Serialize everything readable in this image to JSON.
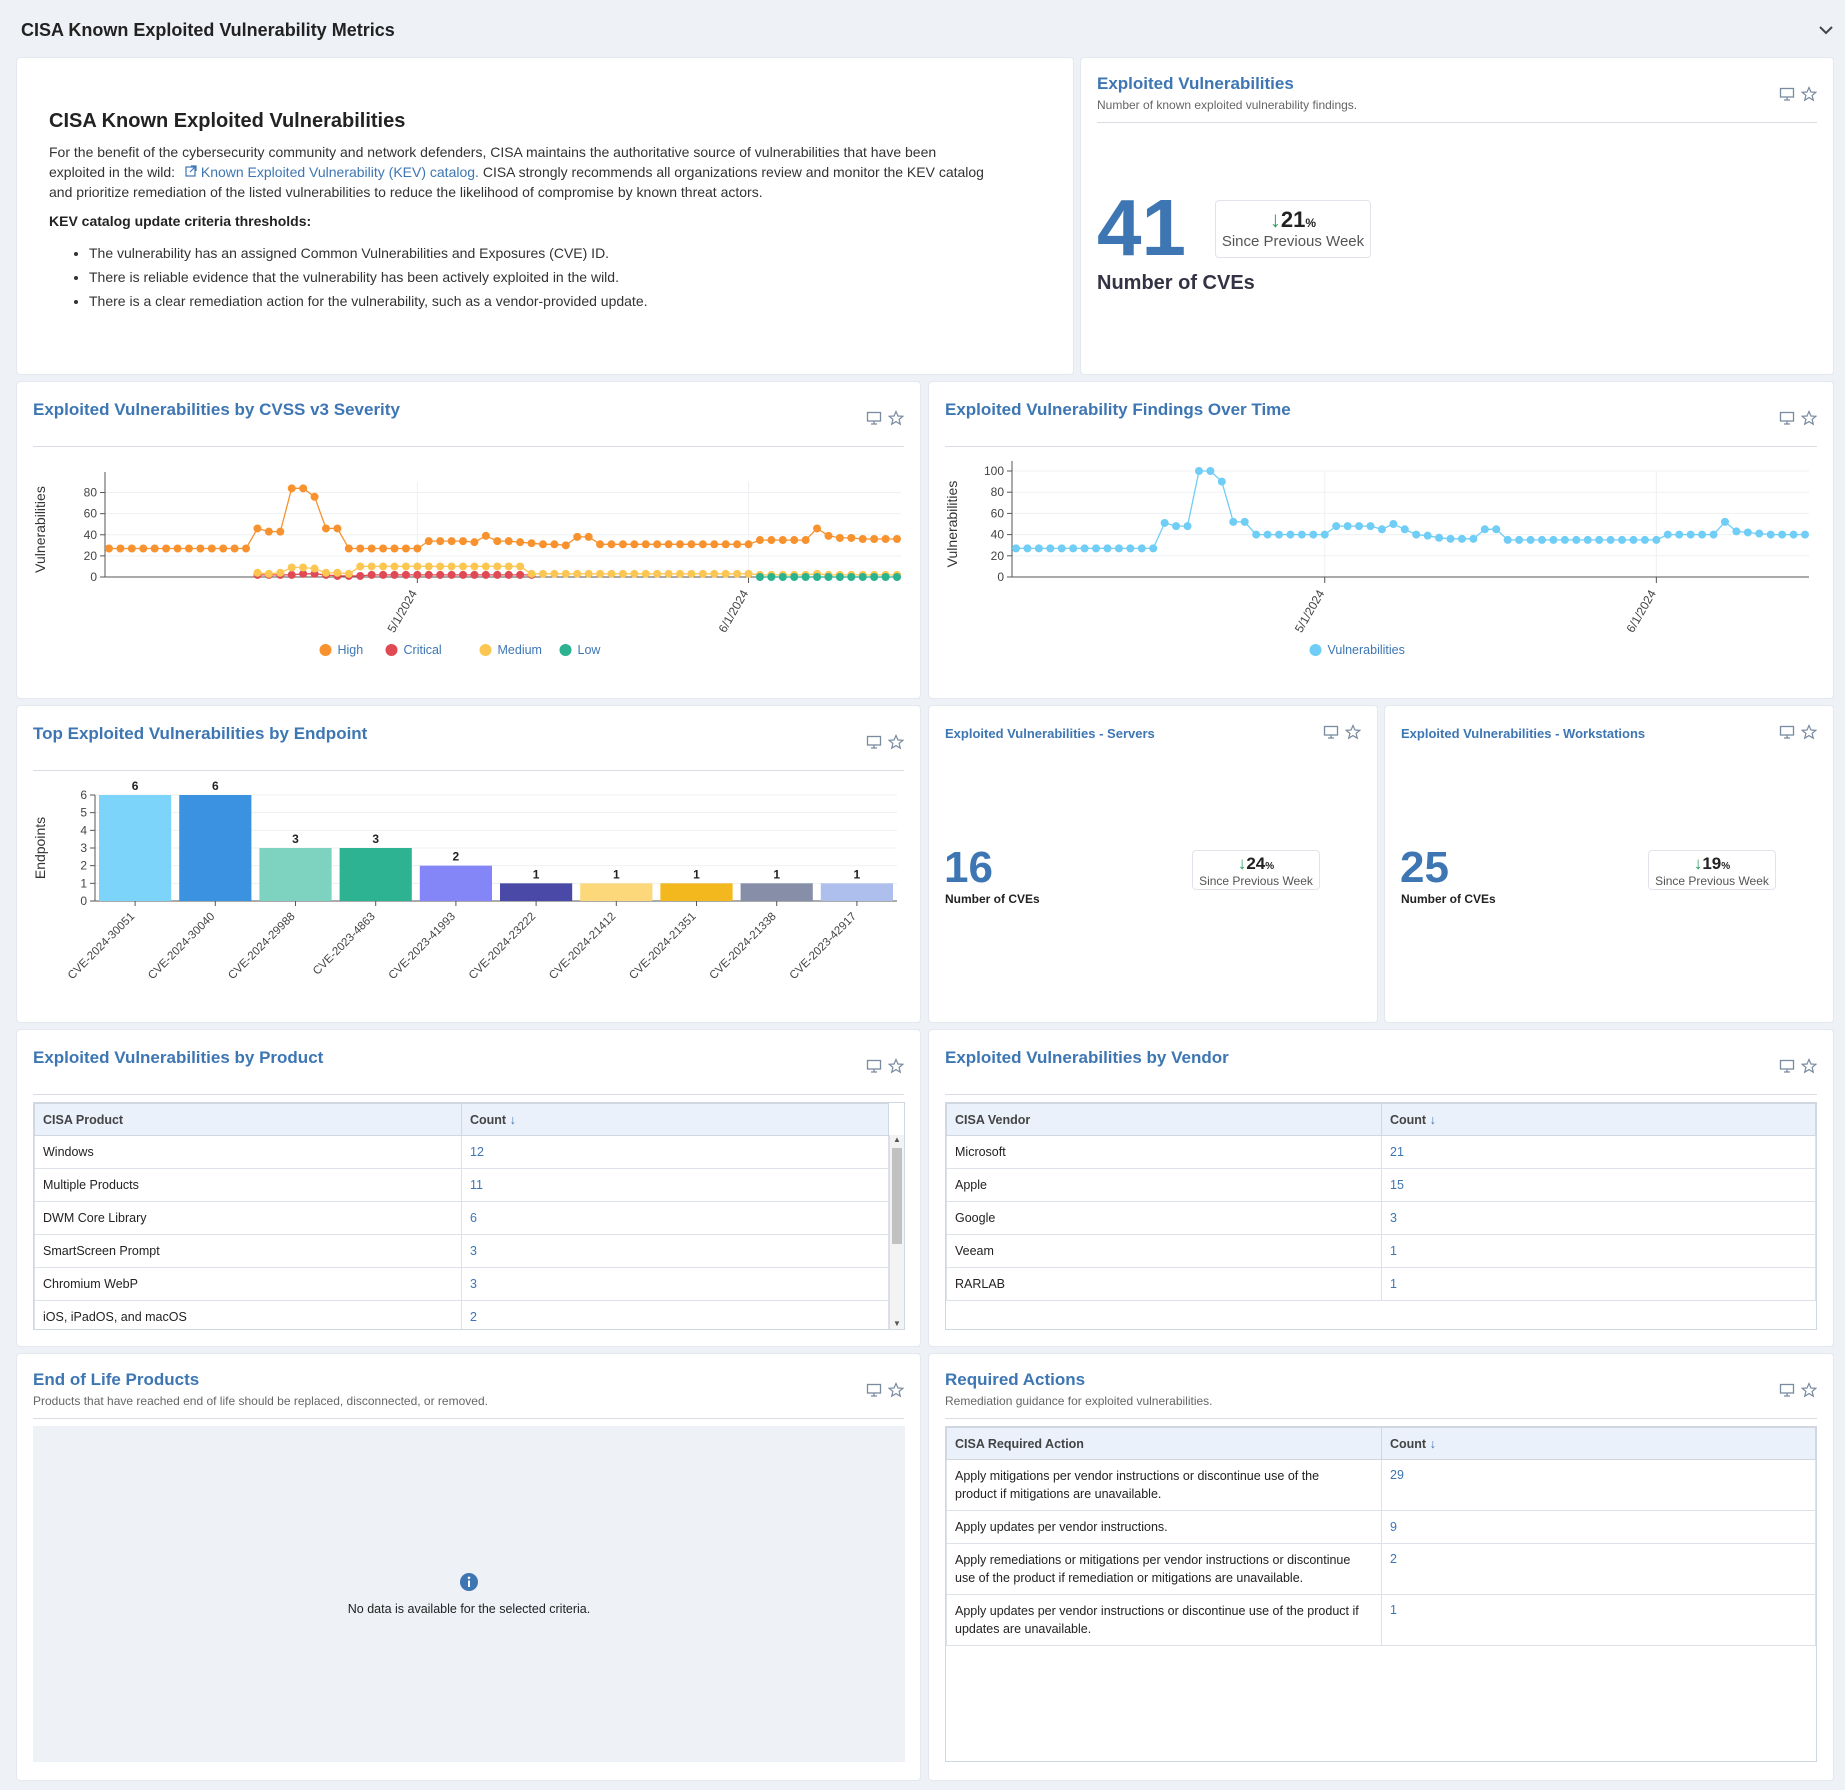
{
  "header": {
    "title": "CISA Known Exploited Vulnerability Metrics"
  },
  "intro": {
    "title": "CISA Known Exploited Vulnerabilities",
    "p1_a": "For the benefit of the cybersecurity community and network defenders, CISA maintains the authoritative source of vulnerabilities that have been",
    "p1_b": "exploited in the wild:",
    "link": "Known Exploited Vulnerability (KEV) catalog.",
    "p1_c": "CISA strongly recommends all organizations review and monitor the KEV catalog",
    "p1_d": "and prioritize remediation of the listed vulnerabilities to reduce the likelihood of compromise by known threat actors.",
    "criteria_title": "KEV catalog update criteria thresholds:",
    "bullets": [
      "The vulnerability has an assigned Common Vulnerabilities and Exposures (CVE) ID.",
      "There is reliable evidence that the vulnerability has been actively exploited in the wild.",
      "There is a clear remediation action for the vulnerability, such as a vendor-provided update."
    ]
  },
  "kpi_main": {
    "title": "Exploited Vulnerabilities",
    "subtitle": "Number of known exploited vulnerability findings.",
    "value": "41",
    "label": "Number of CVEs",
    "delta": "21",
    "delta_unit": "%",
    "delta_label": "Since Previous Week"
  },
  "kpi_servers": {
    "title": "Exploited Vulnerabilities - Servers",
    "value": "16",
    "label": "Number of CVEs",
    "delta": "24",
    "delta_unit": "%",
    "delta_label": "Since Previous Week"
  },
  "kpi_workstations": {
    "title": "Exploited Vulnerabilities - Workstations",
    "value": "25",
    "label": "Number of CVEs",
    "delta": "19",
    "delta_unit": "%",
    "delta_label": "Since Previous Week"
  },
  "severity_panel": {
    "title": "Exploited Vulnerabilities by CVSS v3 Severity"
  },
  "overtime_panel": {
    "title": "Exploited Vulnerability Findings Over Time"
  },
  "endpoint_panel": {
    "title": "Top Exploited Vulnerabilities by Endpoint"
  },
  "product_panel": {
    "title": "Exploited Vulnerabilities by Product",
    "columns": [
      "CISA Product",
      "Count"
    ],
    "rows": [
      [
        "Windows",
        "12"
      ],
      [
        "Multiple Products",
        "11"
      ],
      [
        "DWM Core Library",
        "6"
      ],
      [
        "SmartScreen Prompt",
        "3"
      ],
      [
        "Chromium WebP",
        "3"
      ],
      [
        "iOS, iPadOS, and macOS",
        "2"
      ]
    ]
  },
  "vendor_panel": {
    "title": "Exploited Vulnerabilities by Vendor",
    "columns": [
      "CISA Vendor",
      "Count"
    ],
    "rows": [
      [
        "Microsoft",
        "21"
      ],
      [
        "Apple",
        "15"
      ],
      [
        "Google",
        "3"
      ],
      [
        "Veeam",
        "1"
      ],
      [
        "RARLAB",
        "1"
      ]
    ]
  },
  "eol_panel": {
    "title": "End of Life Products",
    "subtitle": "Products that have reached end of life should be replaced, disconnected, or removed.",
    "empty": "No data is available for the selected criteria."
  },
  "actions_panel": {
    "title": "Required Actions",
    "subtitle": "Remediation guidance for exploited vulnerabilities.",
    "columns": [
      "CISA Required Action",
      "Count"
    ],
    "rows": [
      [
        "Apply mitigations per vendor instructions or discontinue use of the product if mitigations are unavailable.",
        "29"
      ],
      [
        "Apply updates per vendor instructions.",
        "9"
      ],
      [
        "Apply remediations or mitigations per vendor instructions or discontinue use of the product if remediation or mitigations are unavailable.",
        "2"
      ],
      [
        "Apply updates per vendor instructions or discontinue use of the product if updates are unavailable.",
        "1"
      ]
    ]
  },
  "colors": {
    "accent": "#3d76b3",
    "high": "#f7922f",
    "critical": "#e04a54",
    "medium": "#fcc653",
    "low": "#2bb28f",
    "vulns": "#6fcdf6"
  },
  "chart_data": [
    {
      "type": "line",
      "ylabel": "Vulnerabilities",
      "ylim": [
        0,
        90
      ],
      "yticks": [
        0,
        20,
        40,
        60,
        80
      ],
      "xticks": [
        "5/1/2024",
        "6/1/2024"
      ],
      "legend_position": "bottom",
      "grid": true,
      "series": [
        {
          "name": "High",
          "color": "#f7922f",
          "values": [
            27,
            27,
            27,
            27,
            27,
            27,
            27,
            27,
            27,
            27,
            27,
            27,
            27,
            46,
            43,
            43,
            84,
            84,
            76,
            46,
            46,
            27,
            27,
            27,
            27,
            27,
            27,
            27,
            34,
            34,
            34,
            34,
            33,
            39,
            34,
            34,
            33,
            32,
            31,
            31,
            30,
            38,
            38,
            31,
            31,
            31,
            31,
            31,
            31,
            31,
            31,
            31,
            31,
            31,
            31,
            31,
            31,
            35,
            35,
            35,
            35,
            35,
            46,
            39,
            37,
            37,
            36,
            36,
            36,
            36
          ]
        },
        {
          "name": "Critical",
          "color": "#e04a54",
          "values": [
            null,
            null,
            null,
            null,
            null,
            null,
            null,
            null,
            null,
            null,
            null,
            null,
            null,
            2,
            2,
            2,
            2,
            3,
            3,
            2,
            1,
            1,
            1,
            2,
            2,
            2,
            2,
            2,
            2,
            2,
            2,
            2,
            2,
            2,
            2,
            2,
            2,
            2,
            null,
            null,
            null,
            null,
            null,
            null,
            null,
            null,
            null,
            null,
            null,
            null,
            null,
            null,
            null,
            null,
            null,
            null,
            null,
            null,
            null,
            null,
            null,
            null,
            null,
            null,
            null,
            null,
            null,
            null,
            null,
            null
          ]
        },
        {
          "name": "Medium",
          "color": "#fcc653",
          "values": [
            null,
            null,
            null,
            null,
            null,
            null,
            null,
            null,
            null,
            null,
            null,
            null,
            null,
            4,
            3,
            4,
            9,
            9,
            8,
            4,
            4,
            3,
            10,
            10,
            10,
            10,
            10,
            10,
            10,
            10,
            10,
            10,
            10,
            10,
            10,
            10,
            10,
            3,
            3,
            3,
            3,
            3,
            3,
            3,
            3,
            3,
            3,
            3,
            3,
            3,
            3,
            3,
            3,
            3,
            3,
            3,
            3,
            2,
            2,
            2,
            2,
            2,
            3,
            2,
            2,
            2,
            2,
            2,
            2,
            2
          ]
        },
        {
          "name": "Low",
          "color": "#2bb28f",
          "values": [
            null,
            null,
            null,
            null,
            null,
            null,
            null,
            null,
            null,
            null,
            null,
            null,
            null,
            null,
            null,
            null,
            null,
            null,
            null,
            null,
            null,
            null,
            null,
            null,
            null,
            null,
            null,
            null,
            null,
            null,
            null,
            null,
            null,
            null,
            null,
            null,
            null,
            null,
            null,
            null,
            null,
            null,
            null,
            null,
            null,
            null,
            null,
            null,
            null,
            null,
            null,
            null,
            null,
            null,
            null,
            null,
            null,
            0,
            0,
            0,
            0,
            0,
            0,
            0,
            0,
            0,
            0,
            0,
            0,
            0
          ]
        }
      ]
    },
    {
      "type": "line",
      "ylabel": "Vulnerabilities",
      "ylim": [
        0,
        100
      ],
      "yticks": [
        0,
        20,
        40,
        60,
        80,
        100
      ],
      "xticks": [
        "5/1/2024",
        "6/1/2024"
      ],
      "legend_position": "bottom",
      "grid": true,
      "series": [
        {
          "name": "Vulnerabilities",
          "color": "#6fcdf6",
          "values": [
            27,
            27,
            27,
            27,
            27,
            27,
            27,
            27,
            27,
            27,
            27,
            27,
            27,
            51,
            48,
            48,
            100,
            100,
            90,
            52,
            52,
            40,
            40,
            40,
            40,
            40,
            40,
            40,
            48,
            48,
            48,
            48,
            45,
            50,
            45,
            40,
            39,
            37,
            36,
            36,
            36,
            45,
            45,
            35,
            35,
            35,
            35,
            35,
            35,
            35,
            35,
            35,
            35,
            35,
            35,
            35,
            35,
            40,
            40,
            40,
            40,
            40,
            52,
            43,
            42,
            41,
            40,
            40,
            40,
            40
          ]
        }
      ]
    },
    {
      "type": "bar",
      "ylabel": "Endpoints",
      "ylim": [
        0,
        6
      ],
      "yticks": [
        0,
        1,
        2,
        3,
        4,
        5,
        6
      ],
      "categories": [
        "CVE-2024-30051",
        "CVE-2024-30040",
        "CVE-2024-29988",
        "CVE-2023-4863",
        "CVE-2023-41993",
        "CVE-2024-23222",
        "CVE-2024-21412",
        "CVE-2024-21351",
        "CVE-2024-21338",
        "CVE-2023-42917"
      ],
      "values": [
        6,
        6,
        3,
        3,
        2,
        1,
        1,
        1,
        1,
        1
      ],
      "colors": [
        "#7dd4fb",
        "#3b92e0",
        "#7dd3bf",
        "#2eb392",
        "#8485f7",
        "#4b49a8",
        "#fcd87b",
        "#f2b81d",
        "#868ea8",
        "#aebfee"
      ]
    }
  ]
}
